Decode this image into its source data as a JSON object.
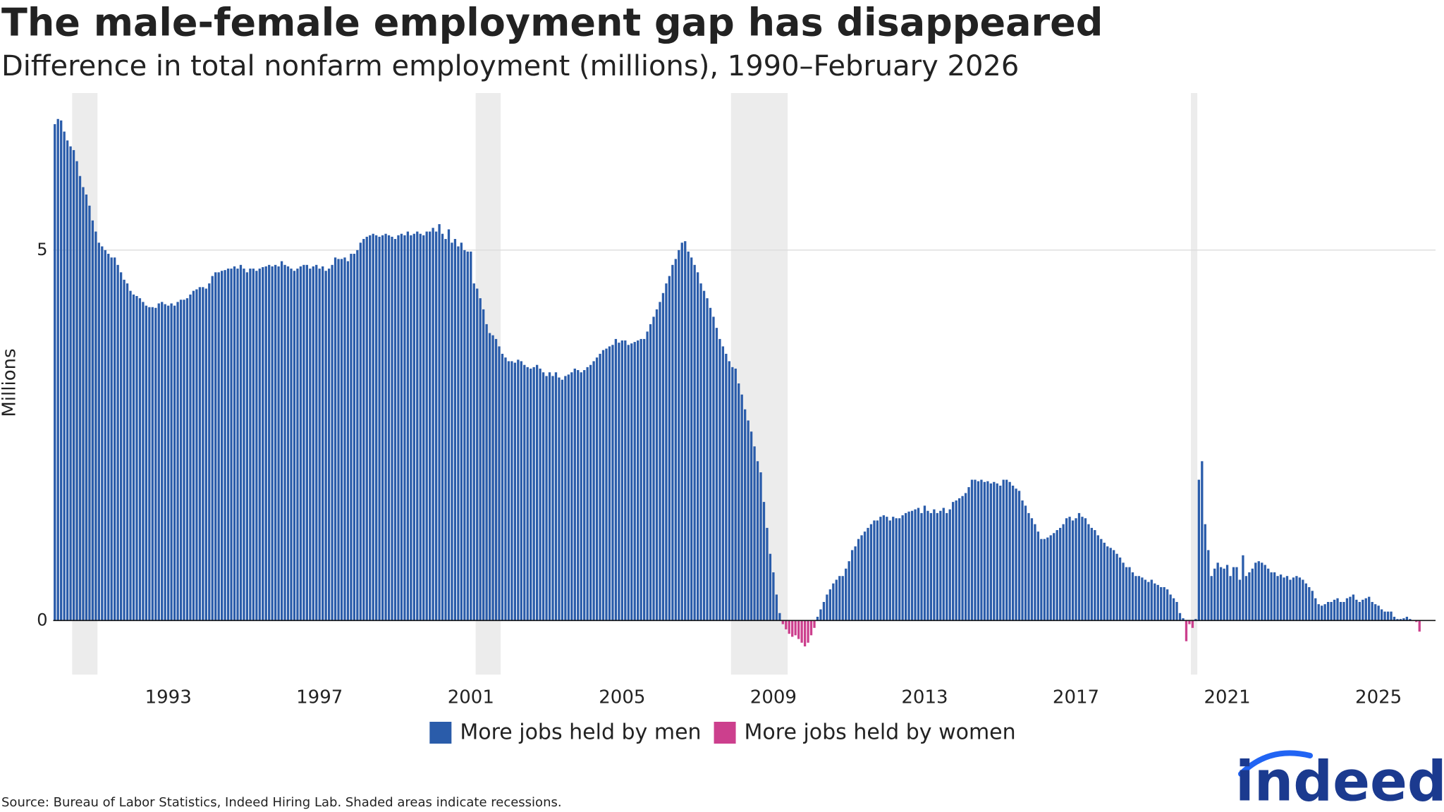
{
  "chart_data": {
    "type": "bar",
    "title": "The male-female employment gap has disappeared",
    "subtitle": "Difference in total nonfarm employment (millions), 1990–February 2026",
    "y_label": "Millions",
    "legend": [
      {
        "name": "More jobs held by men",
        "color": "#2a5caa"
      },
      {
        "name": "More jobs held by women",
        "color": "#cc3f8d"
      }
    ],
    "ylim": [
      -0.73,
      7.12
    ],
    "yticks": [
      0,
      5
    ],
    "grid": true,
    "recessions": [
      [
        1990.5,
        1991.17
      ],
      [
        2001.17,
        2001.83
      ],
      [
        2007.92,
        2009.42
      ],
      [
        2020.08,
        2020.25
      ]
    ],
    "categories": [
      null,
      null,
      null,
      null,
      null,
      null,
      null,
      null,
      null,
      null,
      null,
      null,
      null,
      null,
      null,
      null,
      null,
      null,
      null,
      null,
      null,
      null,
      null,
      null,
      null,
      null,
      null,
      null,
      null,
      null,
      null,
      null,
      null,
      null,
      null,
      null,
      "1993",
      null,
      null,
      null,
      null,
      null,
      null,
      null,
      null,
      null,
      null,
      null,
      null,
      null,
      null,
      null,
      null,
      null,
      null,
      null,
      null,
      null,
      null,
      null,
      null,
      null,
      null,
      null,
      null,
      null,
      null,
      null,
      null,
      null,
      null,
      null,
      null,
      null,
      null,
      null,
      null,
      null,
      null,
      null,
      null,
      null,
      null,
      null,
      "1997",
      null,
      null,
      null,
      null,
      null,
      null,
      null,
      null,
      null,
      null,
      null,
      null,
      null,
      null,
      null,
      null,
      null,
      null,
      null,
      null,
      null,
      null,
      null,
      null,
      null,
      null,
      null,
      null,
      null,
      null,
      null,
      null,
      null,
      null,
      null,
      null,
      null,
      null,
      null,
      null,
      null,
      null,
      null,
      null,
      null,
      null,
      null,
      "2001",
      null,
      null,
      null,
      null,
      null,
      null,
      null,
      null,
      null,
      null,
      null,
      null,
      null,
      null,
      null,
      null,
      null,
      null,
      null,
      null,
      null,
      null,
      null,
      null,
      null,
      null,
      null,
      null,
      null,
      null,
      null,
      null,
      null,
      null,
      null,
      null,
      null,
      null,
      null,
      null,
      null,
      null,
      null,
      null,
      null,
      null,
      null,
      "2005",
      null,
      null,
      null,
      null,
      null,
      null,
      null,
      null,
      null,
      null,
      null,
      null,
      null,
      null,
      null,
      null,
      null,
      null,
      null,
      null,
      null,
      null,
      null,
      null,
      null,
      null,
      null,
      null,
      null,
      null,
      null,
      null,
      null,
      null,
      null,
      null,
      null,
      null,
      null,
      null,
      null,
      null,
      null,
      null,
      null,
      null,
      null,
      "2009",
      null,
      null,
      null,
      null,
      null,
      null,
      null,
      null,
      null,
      null,
      null,
      null,
      null,
      null,
      null,
      null,
      null,
      null,
      null,
      null,
      null,
      null,
      null,
      null,
      null,
      null,
      null,
      null,
      null,
      null,
      null,
      null,
      null,
      null,
      null,
      null,
      null,
      null,
      null,
      null,
      null,
      null,
      null,
      null,
      null,
      null,
      null,
      "2013",
      null,
      null,
      null,
      null,
      null,
      null,
      null,
      null,
      null,
      null,
      null,
      null,
      null,
      null,
      null,
      null,
      null,
      null,
      null,
      null,
      null,
      null,
      null,
      null,
      null,
      null,
      null,
      null,
      null,
      null,
      null,
      null,
      null,
      null,
      null,
      null,
      null,
      null,
      null,
      null,
      null,
      null,
      null,
      null,
      null,
      null,
      null,
      "2017",
      null,
      null,
      null,
      null,
      null,
      null,
      null,
      null,
      null,
      null,
      null,
      null,
      null,
      null,
      null,
      null,
      null,
      null,
      null,
      null,
      null,
      null,
      null,
      null,
      null,
      null,
      null,
      null,
      null,
      null,
      null,
      null,
      null,
      null,
      null,
      null,
      null,
      null,
      null,
      null,
      null,
      null,
      null,
      null,
      null,
      null,
      null,
      "2021",
      null,
      null,
      null,
      null,
      null,
      null,
      null,
      null,
      null,
      null,
      null,
      null,
      null,
      null,
      null,
      null,
      null,
      null,
      null,
      null,
      null,
      null,
      null,
      null,
      null,
      null,
      null,
      null,
      null,
      null,
      null,
      null,
      null,
      null,
      null,
      null,
      null,
      null,
      null,
      null,
      null,
      null,
      null,
      null,
      null,
      null,
      null,
      "2025",
      null,
      null,
      null,
      null,
      null,
      null,
      null,
      null,
      null,
      null,
      null,
      null,
      null
    ],
    "values": [
      6.7,
      6.77,
      6.75,
      6.6,
      6.48,
      6.4,
      6.35,
      6.2,
      6.0,
      5.85,
      5.75,
      5.6,
      5.4,
      5.25,
      5.1,
      5.05,
      5.0,
      4.95,
      4.9,
      4.9,
      4.8,
      4.7,
      4.6,
      4.55,
      4.45,
      4.4,
      4.38,
      4.35,
      4.3,
      4.25,
      4.23,
      4.23,
      4.22,
      4.28,
      4.3,
      4.27,
      4.25,
      4.28,
      4.25,
      4.3,
      4.33,
      4.33,
      4.35,
      4.4,
      4.45,
      4.47,
      4.5,
      4.5,
      4.48,
      4.55,
      4.65,
      4.7,
      4.7,
      4.72,
      4.73,
      4.75,
      4.75,
      4.78,
      4.75,
      4.8,
      4.75,
      4.7,
      4.75,
      4.75,
      4.72,
      4.75,
      4.77,
      4.78,
      4.8,
      4.78,
      4.8,
      4.78,
      4.85,
      4.8,
      4.78,
      4.75,
      4.72,
      4.75,
      4.78,
      4.8,
      4.8,
      4.75,
      4.78,
      4.8,
      4.75,
      4.78,
      4.72,
      4.75,
      4.8,
      4.9,
      4.88,
      4.88,
      4.9,
      4.85,
      4.95,
      4.95,
      5.0,
      5.1,
      5.15,
      5.18,
      5.2,
      5.22,
      5.2,
      5.18,
      5.2,
      5.22,
      5.2,
      5.18,
      5.15,
      5.2,
      5.22,
      5.2,
      5.25,
      5.2,
      5.22,
      5.25,
      5.22,
      5.2,
      5.25,
      5.25,
      5.3,
      5.25,
      5.35,
      5.22,
      5.15,
      5.28,
      5.1,
      5.15,
      5.05,
      5.1,
      5.0,
      4.98,
      4.98,
      4.55,
      4.48,
      4.35,
      4.2,
      4.0,
      3.88,
      3.85,
      3.8,
      3.7,
      3.6,
      3.55,
      3.5,
      3.5,
      3.48,
      3.52,
      3.5,
      3.45,
      3.42,
      3.4,
      3.42,
      3.45,
      3.4,
      3.35,
      3.3,
      3.35,
      3.3,
      3.35,
      3.28,
      3.25,
      3.3,
      3.32,
      3.35,
      3.4,
      3.38,
      3.35,
      3.38,
      3.42,
      3.45,
      3.5,
      3.55,
      3.6,
      3.65,
      3.67,
      3.7,
      3.72,
      3.8,
      3.75,
      3.78,
      3.78,
      3.72,
      3.74,
      3.76,
      3.78,
      3.8,
      3.8,
      3.9,
      4.0,
      4.1,
      4.2,
      4.3,
      4.42,
      4.55,
      4.65,
      4.8,
      4.88,
      5.0,
      5.1,
      5.12,
      4.98,
      4.9,
      4.8,
      4.7,
      4.55,
      4.45,
      4.35,
      4.22,
      4.1,
      3.95,
      3.8,
      3.7,
      3.6,
      3.5,
      3.42,
      3.4,
      3.2,
      3.05,
      2.85,
      2.7,
      2.55,
      2.35,
      2.15,
      2.0,
      1.6,
      1.25,
      0.9,
      0.65,
      0.35,
      0.1,
      -0.05,
      -0.12,
      -0.18,
      -0.22,
      -0.2,
      -0.25,
      -0.3,
      -0.35,
      -0.3,
      -0.2,
      -0.1,
      0.05,
      0.15,
      0.25,
      0.35,
      0.42,
      0.5,
      0.55,
      0.6,
      0.6,
      0.7,
      0.8,
      0.95,
      1.0,
      1.1,
      1.15,
      1.2,
      1.25,
      1.3,
      1.35,
      1.35,
      1.4,
      1.42,
      1.4,
      1.35,
      1.4,
      1.38,
      1.38,
      1.42,
      1.45,
      1.47,
      1.48,
      1.5,
      1.52,
      1.45,
      1.55,
      1.48,
      1.45,
      1.5,
      1.45,
      1.48,
      1.52,
      1.45,
      1.5,
      1.6,
      1.62,
      1.65,
      1.68,
      1.72,
      1.8,
      1.9,
      1.9,
      1.88,
      1.9,
      1.87,
      1.88,
      1.85,
      1.87,
      1.85,
      1.82,
      1.9,
      1.9,
      1.87,
      1.82,
      1.78,
      1.75,
      1.62,
      1.55,
      1.45,
      1.38,
      1.3,
      1.2,
      1.1,
      1.1,
      1.12,
      1.15,
      1.18,
      1.22,
      1.25,
      1.3,
      1.38,
      1.4,
      1.35,
      1.38,
      1.45,
      1.4,
      1.38,
      1.3,
      1.25,
      1.22,
      1.15,
      1.1,
      1.05,
      1.0,
      0.98,
      0.95,
      0.9,
      0.85,
      0.78,
      0.72,
      0.72,
      0.65,
      0.6,
      0.6,
      0.58,
      0.55,
      0.52,
      0.55,
      0.5,
      0.48,
      0.45,
      0.45,
      0.42,
      0.35,
      0.3,
      0.25,
      0.1,
      0.03,
      -0.28,
      -0.05,
      -0.1,
      0.02,
      1.9,
      2.15,
      1.3,
      0.95,
      0.6,
      0.7,
      0.78,
      0.72,
      0.7,
      0.75,
      0.6,
      0.72,
      0.72,
      0.55,
      0.88,
      0.6,
      0.65,
      0.7,
      0.78,
      0.8,
      0.78,
      0.75,
      0.7,
      0.65,
      0.65,
      0.6,
      0.62,
      0.58,
      0.6,
      0.55,
      0.58,
      0.6,
      0.58,
      0.55,
      0.5,
      0.45,
      0.4,
      0.3,
      0.22,
      0.2,
      0.22,
      0.25,
      0.25,
      0.28,
      0.3,
      0.25,
      0.25,
      0.3,
      0.32,
      0.35,
      0.28,
      0.25,
      0.28,
      0.3,
      0.32,
      0.25,
      0.22,
      0.2,
      0.15,
      0.12,
      0.12,
      0.12,
      0.05,
      0.02,
      0.02,
      0.03,
      0.05,
      0.02,
      0.0,
      -0.02,
      -0.15
    ]
  },
  "source": "Source: Bureau of Labor Statistics, Indeed Hiring Lab. Shaded areas indicate recessions.",
  "logo": "indeed"
}
